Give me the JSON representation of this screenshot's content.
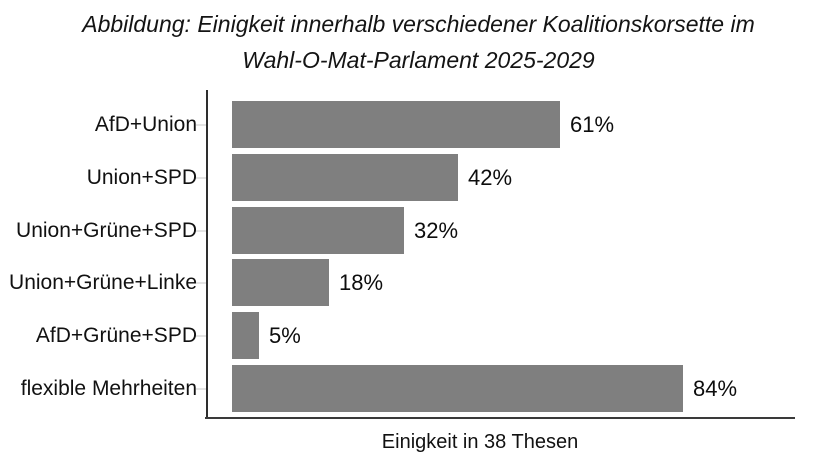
{
  "figure": {
    "title_lines": [
      "Abbildung: Einigkeit innerhalb verschiedener Koalitionskorsette im",
      "Wahl-O-Mat-Parlament 2025-2029"
    ]
  },
  "chart_data": {
    "type": "bar",
    "orientation": "horizontal",
    "title": "Abbildung: Einigkeit innerhalb verschiedener Koalitionskorsette im Wahl-O-Mat-Parlament 2025-2029",
    "categories": [
      "AfD+Union",
      "Union+SPD",
      "Union+Grüne+SPD",
      "Union+Grüne+Linke",
      "AfD+Grüne+SPD",
      "flexible Mehrheiten"
    ],
    "values": [
      61,
      42,
      32,
      18,
      5,
      84
    ],
    "value_labels": [
      "61%",
      "42%",
      "32%",
      "18%",
      "5%",
      "84%"
    ],
    "xlabel": "Einigkeit in 38 Thesen",
    "ylabel": "",
    "xlim": [
      0,
      105
    ],
    "grid": false,
    "legend": false,
    "bar_color": "#7f7f7f",
    "axis_color": "#2e2e2e",
    "tick_color": "#e4e4e4",
    "text_color": "#111111"
  }
}
